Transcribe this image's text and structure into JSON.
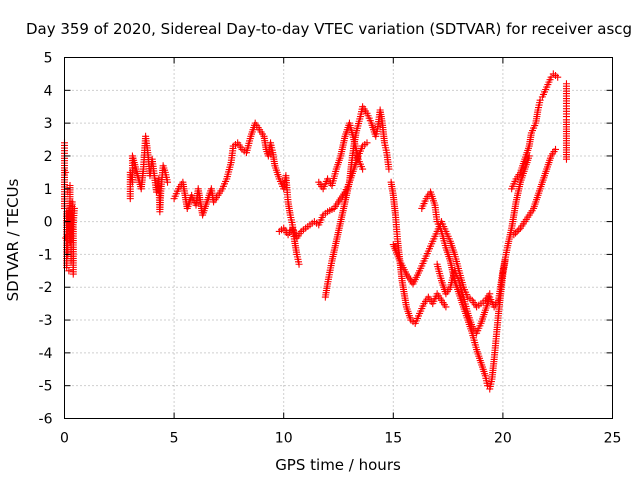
{
  "chart_data": {
    "type": "scatter",
    "title": "Day 359 of 2020, Sidereal Day-to-day VTEC variation (SDTVAR) for receiver ascg",
    "xlabel": "GPS time / hours",
    "ylabel": "SDTVAR / TECUs",
    "xlim": [
      0,
      25
    ],
    "ylim": [
      -6,
      5
    ],
    "xticks": [
      "0",
      "5",
      "10",
      "15",
      "20",
      "25"
    ],
    "yticks": [
      "-6",
      "-5",
      "-4",
      "-3",
      "-2",
      "-1",
      "0",
      "1",
      "2",
      "3",
      "4",
      "5"
    ],
    "grid": true,
    "marker": "+",
    "color": "#ff0000",
    "series": [
      {
        "points": [
          [
            0.0,
            0.4
          ],
          [
            0.0,
            1.2
          ],
          [
            0.0,
            2.0
          ],
          [
            0.0,
            2.4
          ],
          [
            0.05,
            -0.5
          ],
          [
            0.05,
            1.5
          ],
          [
            0.1,
            -1.4
          ],
          [
            0.1,
            0.3
          ],
          [
            0.15,
            -1.0
          ],
          [
            0.15,
            0.9
          ],
          [
            0.2,
            -1.5
          ],
          [
            0.2,
            0.4
          ],
          [
            0.25,
            -0.6
          ],
          [
            0.25,
            1.1
          ],
          [
            0.3,
            -1.2
          ],
          [
            0.3,
            0.2
          ],
          [
            0.35,
            -0.3
          ],
          [
            0.35,
            0.6
          ],
          [
            0.4,
            -1.6
          ],
          [
            0.4,
            -0.1
          ],
          [
            0.45,
            0.4
          ]
        ]
      },
      {
        "points": [
          [
            3.0,
            0.7
          ],
          [
            3.0,
            1.5
          ],
          [
            3.1,
            1.2
          ],
          [
            3.1,
            2.0
          ],
          [
            3.5,
            1.0
          ],
          [
            3.6,
            1.6
          ],
          [
            3.7,
            2.6
          ],
          [
            3.8,
            2.1
          ],
          [
            3.9,
            1.4
          ],
          [
            4.0,
            1.9
          ],
          [
            4.1,
            1.4
          ],
          [
            4.2,
            0.9
          ],
          [
            4.3,
            1.3
          ],
          [
            4.35,
            0.3
          ],
          [
            4.4,
            1.0
          ],
          [
            4.5,
            1.7
          ],
          [
            4.6,
            1.5
          ],
          [
            4.7,
            1.2
          ]
        ]
      },
      {
        "points": [
          [
            5.0,
            0.7
          ],
          [
            5.2,
            1.0
          ],
          [
            5.4,
            1.2
          ],
          [
            5.5,
            0.8
          ],
          [
            5.6,
            0.4
          ],
          [
            5.8,
            0.8
          ],
          [
            6.0,
            0.5
          ],
          [
            6.1,
            1.0
          ],
          [
            6.3,
            0.2
          ],
          [
            6.5,
            0.6
          ],
          [
            6.7,
            1.0
          ],
          [
            6.8,
            0.6
          ],
          [
            7.0,
            0.8
          ],
          [
            7.2,
            1.0
          ],
          [
            7.4,
            1.3
          ],
          [
            7.6,
            1.8
          ],
          [
            7.7,
            2.3
          ],
          [
            7.9,
            2.4
          ],
          [
            8.1,
            2.2
          ],
          [
            8.3,
            2.1
          ],
          [
            8.5,
            2.6
          ],
          [
            8.7,
            3.0
          ],
          [
            8.9,
            2.8
          ],
          [
            9.1,
            2.6
          ],
          [
            9.2,
            2.2
          ],
          [
            9.3,
            2.0
          ],
          [
            9.4,
            2.4
          ],
          [
            9.5,
            2.1
          ],
          [
            9.6,
            1.7
          ],
          [
            9.7,
            1.5
          ],
          [
            9.8,
            1.3
          ],
          [
            10.0,
            1.0
          ],
          [
            10.1,
            1.4
          ],
          [
            10.2,
            0.6
          ],
          [
            10.3,
            0.2
          ],
          [
            10.4,
            -0.1
          ],
          [
            10.5,
            -0.6
          ],
          [
            10.6,
            -1.0
          ],
          [
            10.7,
            -1.3
          ]
        ]
      },
      {
        "points": [
          [
            9.8,
            -0.3
          ],
          [
            10.0,
            -0.2
          ],
          [
            10.2,
            -0.4
          ],
          [
            10.4,
            -0.2
          ],
          [
            10.6,
            -0.5
          ],
          [
            10.8,
            -0.3
          ],
          [
            11.0,
            -0.2
          ],
          [
            11.2,
            -0.1
          ],
          [
            11.4,
            0.0
          ],
          [
            11.6,
            -0.1
          ],
          [
            11.8,
            0.2
          ],
          [
            12.0,
            0.3
          ],
          [
            12.3,
            0.4
          ],
          [
            12.5,
            0.6
          ],
          [
            12.8,
            0.9
          ],
          [
            13.0,
            1.2
          ],
          [
            13.2,
            1.6
          ],
          [
            13.4,
            2.0
          ],
          [
            13.6,
            2.3
          ],
          [
            13.8,
            2.4
          ]
        ]
      },
      {
        "points": [
          [
            11.9,
            -2.3
          ],
          [
            12.0,
            -1.9
          ],
          [
            12.2,
            -1.2
          ],
          [
            12.4,
            -0.6
          ],
          [
            12.6,
            0.0
          ],
          [
            12.8,
            0.6
          ],
          [
            13.0,
            1.2
          ],
          [
            13.1,
            1.8
          ],
          [
            13.2,
            2.3
          ],
          [
            13.3,
            2.7
          ],
          [
            13.5,
            3.2
          ],
          [
            13.6,
            3.5
          ],
          [
            13.8,
            3.3
          ],
          [
            14.0,
            3.0
          ],
          [
            14.2,
            2.6
          ],
          [
            14.3,
            2.9
          ],
          [
            14.4,
            3.4
          ],
          [
            14.5,
            3.0
          ],
          [
            14.6,
            2.4
          ],
          [
            14.7,
            2.1
          ],
          [
            14.8,
            1.6
          ]
        ]
      },
      {
        "points": [
          [
            11.6,
            1.2
          ],
          [
            11.8,
            1.0
          ],
          [
            12.0,
            1.3
          ],
          [
            12.2,
            1.1
          ],
          [
            12.4,
            1.6
          ],
          [
            12.6,
            2.0
          ],
          [
            12.8,
            2.6
          ],
          [
            13.0,
            3.0
          ],
          [
            13.2,
            2.5
          ],
          [
            13.4,
            1.9
          ],
          [
            13.6,
            1.6
          ]
        ]
      },
      {
        "points": [
          [
            14.9,
            1.2
          ],
          [
            15.0,
            0.8
          ],
          [
            15.1,
            0.2
          ],
          [
            15.2,
            -0.6
          ],
          [
            15.3,
            -1.2
          ],
          [
            15.4,
            -1.8
          ],
          [
            15.5,
            -2.2
          ],
          [
            15.6,
            -2.6
          ],
          [
            15.8,
            -3.0
          ],
          [
            16.0,
            -3.1
          ],
          [
            16.2,
            -2.8
          ],
          [
            16.4,
            -2.5
          ],
          [
            16.6,
            -2.3
          ],
          [
            16.8,
            -2.5
          ],
          [
            17.0,
            -2.2
          ],
          [
            17.2,
            -2.4
          ],
          [
            17.4,
            -2.6
          ]
        ]
      },
      {
        "points": [
          [
            15.0,
            -0.7
          ],
          [
            15.3,
            -1.2
          ],
          [
            15.6,
            -1.6
          ],
          [
            15.9,
            -1.9
          ],
          [
            16.2,
            -1.5
          ],
          [
            16.4,
            -1.2
          ],
          [
            16.6,
            -0.9
          ],
          [
            16.8,
            -0.6
          ],
          [
            17.0,
            -0.3
          ],
          [
            17.2,
            0.0
          ],
          [
            17.4,
            -0.3
          ],
          [
            17.6,
            -0.6
          ],
          [
            17.8,
            -1.0
          ],
          [
            18.0,
            -1.5
          ],
          [
            18.2,
            -2.0
          ],
          [
            18.4,
            -2.3
          ],
          [
            18.6,
            -2.4
          ],
          [
            18.8,
            -2.6
          ],
          [
            19.0,
            -2.5
          ],
          [
            19.2,
            -2.4
          ],
          [
            19.4,
            -2.2
          ]
        ]
      },
      {
        "points": [
          [
            16.3,
            0.4
          ],
          [
            16.5,
            0.7
          ],
          [
            16.7,
            0.9
          ],
          [
            16.9,
            0.5
          ],
          [
            17.0,
            0.0
          ],
          [
            17.2,
            -0.3
          ],
          [
            17.4,
            -0.8
          ],
          [
            17.6,
            -1.2
          ],
          [
            17.8,
            -1.8
          ],
          [
            18.0,
            -2.2
          ],
          [
            18.2,
            -2.6
          ],
          [
            18.4,
            -3.0
          ],
          [
            18.6,
            -3.4
          ],
          [
            18.8,
            -3.9
          ],
          [
            19.0,
            -4.3
          ],
          [
            19.2,
            -4.7
          ],
          [
            19.3,
            -5.0
          ],
          [
            19.4,
            -5.1
          ],
          [
            19.5,
            -4.8
          ],
          [
            19.6,
            -4.2
          ],
          [
            19.7,
            -3.5
          ],
          [
            19.8,
            -2.8
          ],
          [
            19.9,
            -2.2
          ],
          [
            20.0,
            -1.6
          ],
          [
            20.1,
            -1.2
          ]
        ]
      },
      {
        "points": [
          [
            17.0,
            -1.3
          ],
          [
            17.2,
            -1.8
          ],
          [
            17.4,
            -2.2
          ],
          [
            17.6,
            -2.0
          ],
          [
            17.8,
            -1.5
          ],
          [
            18.0,
            -1.8
          ],
          [
            18.2,
            -2.3
          ],
          [
            18.4,
            -2.8
          ],
          [
            18.6,
            -3.2
          ],
          [
            18.8,
            -3.4
          ],
          [
            19.0,
            -3.1
          ],
          [
            19.2,
            -2.7
          ],
          [
            19.4,
            -2.3
          ],
          [
            19.6,
            -2.6
          ],
          [
            19.8,
            -2.4
          ],
          [
            20.0,
            -1.5
          ],
          [
            20.2,
            -0.8
          ],
          [
            20.4,
            -0.2
          ],
          [
            20.6,
            0.6
          ],
          [
            20.8,
            1.2
          ],
          [
            21.0,
            1.6
          ],
          [
            21.2,
            2.0
          ]
        ]
      },
      {
        "points": [
          [
            20.5,
            -0.4
          ],
          [
            20.8,
            -0.2
          ],
          [
            21.0,
            0.0
          ],
          [
            21.2,
            0.2
          ],
          [
            21.4,
            0.4
          ],
          [
            21.6,
            0.8
          ],
          [
            21.8,
            1.2
          ],
          [
            22.0,
            1.6
          ],
          [
            22.2,
            2.0
          ],
          [
            22.4,
            2.2
          ]
        ]
      },
      {
        "points": [
          [
            20.4,
            1.0
          ],
          [
            20.6,
            1.3
          ],
          [
            20.8,
            1.5
          ],
          [
            21.0,
            1.9
          ],
          [
            21.2,
            2.3
          ],
          [
            21.3,
            2.7
          ],
          [
            21.5,
            3.0
          ],
          [
            21.6,
            3.4
          ],
          [
            21.7,
            3.7
          ],
          [
            21.8,
            3.8
          ],
          [
            22.0,
            4.1
          ],
          [
            22.2,
            4.4
          ],
          [
            22.3,
            4.5
          ],
          [
            22.5,
            4.4
          ]
        ]
      },
      {
        "points": [
          [
            22.9,
            4.2
          ],
          [
            22.9,
            3.6
          ],
          [
            22.9,
            3.2
          ],
          [
            22.9,
            3.1
          ],
          [
            22.9,
            1.9
          ]
        ]
      }
    ]
  }
}
